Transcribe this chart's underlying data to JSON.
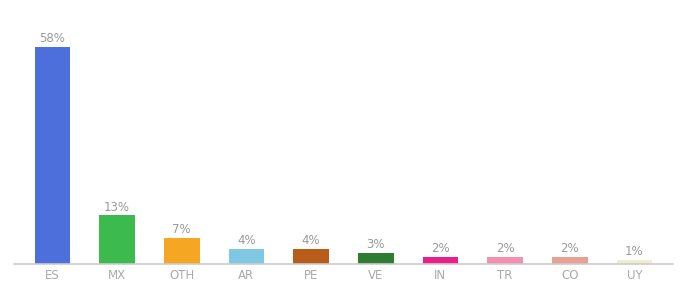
{
  "categories": [
    "ES",
    "MX",
    "OTH",
    "AR",
    "PE",
    "VE",
    "IN",
    "TR",
    "CO",
    "UY"
  ],
  "values": [
    58,
    13,
    7,
    4,
    4,
    3,
    2,
    2,
    2,
    1
  ],
  "bar_colors": [
    "#4d6fdb",
    "#3dba4e",
    "#f5a623",
    "#7ec8e3",
    "#b85c1a",
    "#2e7d32",
    "#e91e8c",
    "#f48fb1",
    "#e8a090",
    "#f0edcc"
  ],
  "ylim": [
    0,
    65
  ],
  "background_color": "#ffffff",
  "label_color": "#999999",
  "label_fontsize": 8.5,
  "tick_fontsize": 8.5,
  "tick_color": "#aaaaaa",
  "bar_width": 0.55,
  "bottom_spine_color": "#cccccc"
}
